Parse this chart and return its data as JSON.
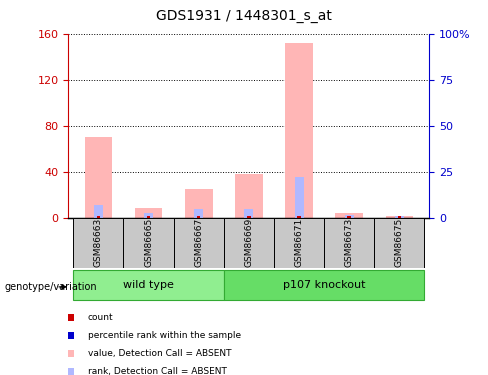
{
  "title": "GDS1931 / 1448301_s_at",
  "samples": [
    "GSM86663",
    "GSM86665",
    "GSM86667",
    "GSM86669",
    "GSM86671",
    "GSM86673",
    "GSM86675"
  ],
  "value_absent": [
    70,
    8,
    25,
    38,
    152,
    4,
    1
  ],
  "rank_absent": [
    11,
    4,
    7,
    7,
    35,
    2,
    1
  ],
  "ylim_left": [
    0,
    160
  ],
  "yticks_left": [
    0,
    40,
    80,
    120,
    160
  ],
  "yticklabels_left": [
    "0",
    "40",
    "80",
    "120",
    "160"
  ],
  "yticks_right_vals": [
    0,
    40,
    80,
    120,
    160
  ],
  "yticklabels_right": [
    "0",
    "25",
    "50",
    "75",
    "100%"
  ],
  "ylabel_left_color": "#cc0000",
  "ylabel_right_color": "#0000cc",
  "color_value_absent": "#ffb6b6",
  "color_rank_absent": "#b0b8ff",
  "color_count": "#cc0000",
  "color_rank_present": "#0000cc",
  "wt_samples": 3,
  "ko_samples": 4,
  "wt_label": "wild type",
  "ko_label": "p107 knockout",
  "wt_color": "#90ee90",
  "ko_color": "#66dd66",
  "group_border_color": "#33aa33",
  "sample_box_color": "#c8c8c8",
  "genotype_label": "genotype/variation",
  "legend_items": [
    {
      "color": "#cc0000",
      "label": "count"
    },
    {
      "color": "#0000cc",
      "label": "percentile rank within the sample"
    },
    {
      "color": "#ffb6b6",
      "label": "value, Detection Call = ABSENT"
    },
    {
      "color": "#b0b8ff",
      "label": "rank, Detection Call = ABSENT"
    }
  ]
}
